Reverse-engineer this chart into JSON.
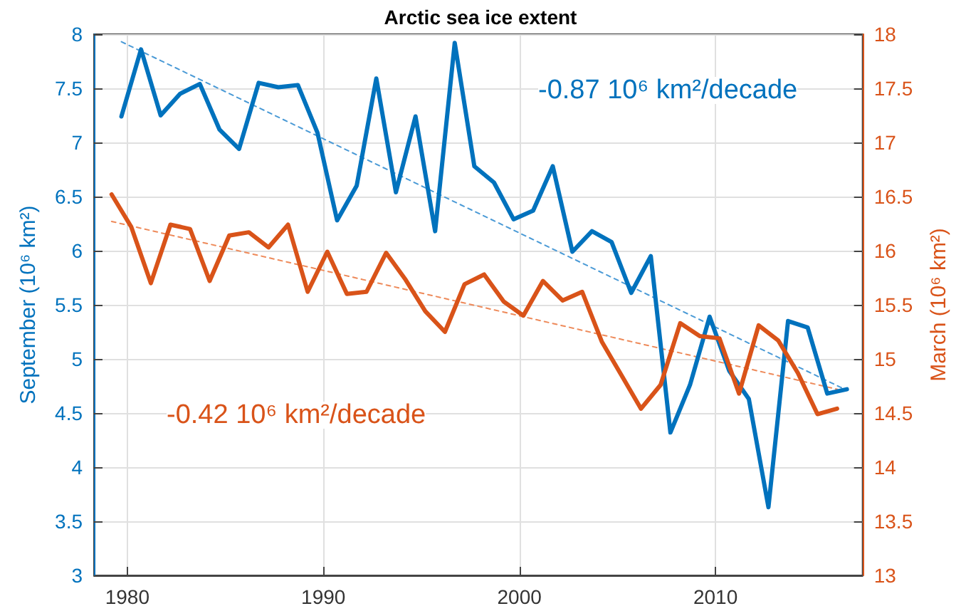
{
  "chart_data": {
    "type": "line",
    "title": "Arctic sea ice extent",
    "ylabel": "September (10⁶ km²)",
    "y2label": "March (10⁶ km²)",
    "series": [
      {
        "color": "#0072bd",
        "x": [
          1979.7,
          1980.7,
          1981.7,
          1982.7,
          1983.7,
          1984.7,
          1985.7,
          1986.7,
          1987.7,
          1988.7,
          1989.7,
          1990.7,
          1991.7,
          1992.7,
          1993.7,
          1994.7,
          1995.7,
          1996.7,
          1997.7,
          1998.7,
          1999.7,
          2000.7,
          2001.7,
          2002.7,
          2003.7,
          2004.7,
          2005.7,
          2006.7,
          2007.7,
          2008.7,
          2009.7,
          2010.7,
          2011.7,
          2012.7,
          2013.7,
          2014.7,
          2015.7,
          2016.7
        ],
        "values": [
          7.24,
          7.86,
          7.25,
          7.45,
          7.54,
          7.12,
          6.94,
          7.55,
          7.51,
          7.53,
          7.09,
          6.28,
          6.6,
          7.59,
          6.54,
          7.24,
          6.18,
          7.92,
          6.78,
          6.63,
          6.29,
          6.37,
          6.78,
          5.99,
          6.18,
          6.08,
          5.61,
          5.95,
          4.32,
          4.76,
          5.39,
          4.89,
          4.63,
          3.63,
          5.35,
          5.29,
          4.68,
          4.72
        ]
      },
      {
        "color": "#d95319",
        "axis": "y2",
        "x": [
          1979.2,
          1980.2,
          1981.2,
          1982.2,
          1983.2,
          1984.2,
          1985.2,
          1986.2,
          1987.2,
          1988.2,
          1989.2,
          1990.2,
          1991.2,
          1992.2,
          1993.2,
          1994.2,
          1995.2,
          1996.2,
          1997.2,
          1998.2,
          1999.2,
          2000.2,
          2001.2,
          2002.2,
          2003.2,
          2004.2,
          2005.2,
          2006.2,
          2007.2,
          2008.2,
          2009.2,
          2010.2,
          2011.2,
          2012.2,
          2013.2,
          2014.2,
          2015.2,
          2016.2
        ],
        "values": [
          16.52,
          16.22,
          15.7,
          16.24,
          16.2,
          15.72,
          16.14,
          16.17,
          16.03,
          16.24,
          15.62,
          15.99,
          15.6,
          15.62,
          15.98,
          15.73,
          15.44,
          15.25,
          15.69,
          15.78,
          15.53,
          15.4,
          15.72,
          15.54,
          15.62,
          15.16,
          14.85,
          14.54,
          14.76,
          15.33,
          15.21,
          15.19,
          14.68,
          15.31,
          15.17,
          14.87,
          14.49,
          14.54
        ]
      },
      {
        "color": "#4a9ad6",
        "line_style": "dashed",
        "x": [
          1979.7,
          2016.7
        ],
        "values": [
          7.93,
          4.71
        ]
      },
      {
        "color": "#ee8a5a",
        "axis": "y2",
        "line_style": "dashed",
        "x": [
          1979.2,
          2016.2
        ],
        "values": [
          16.27,
          14.72
        ]
      }
    ],
    "annotations": [
      "-0.87 10⁶ km²/decade",
      "-0.42 10⁶ km²/decade"
    ],
    "xlim": [
      1978.3,
      2017.5
    ],
    "xticks": [
      1980,
      1990,
      2000,
      2010
    ],
    "ylim": [
      3,
      8
    ],
    "yticks": [
      3,
      3.5,
      4,
      4.5,
      5,
      5.5,
      6,
      6.5,
      7,
      7.5,
      8
    ],
    "y2lim": [
      13,
      18
    ],
    "y2ticks": [
      13,
      13.5,
      14,
      14.5,
      15,
      15.5,
      16,
      16.5,
      17,
      17.5,
      18
    ],
    "grid": true,
    "marker": "none",
    "line_style": "solid"
  }
}
